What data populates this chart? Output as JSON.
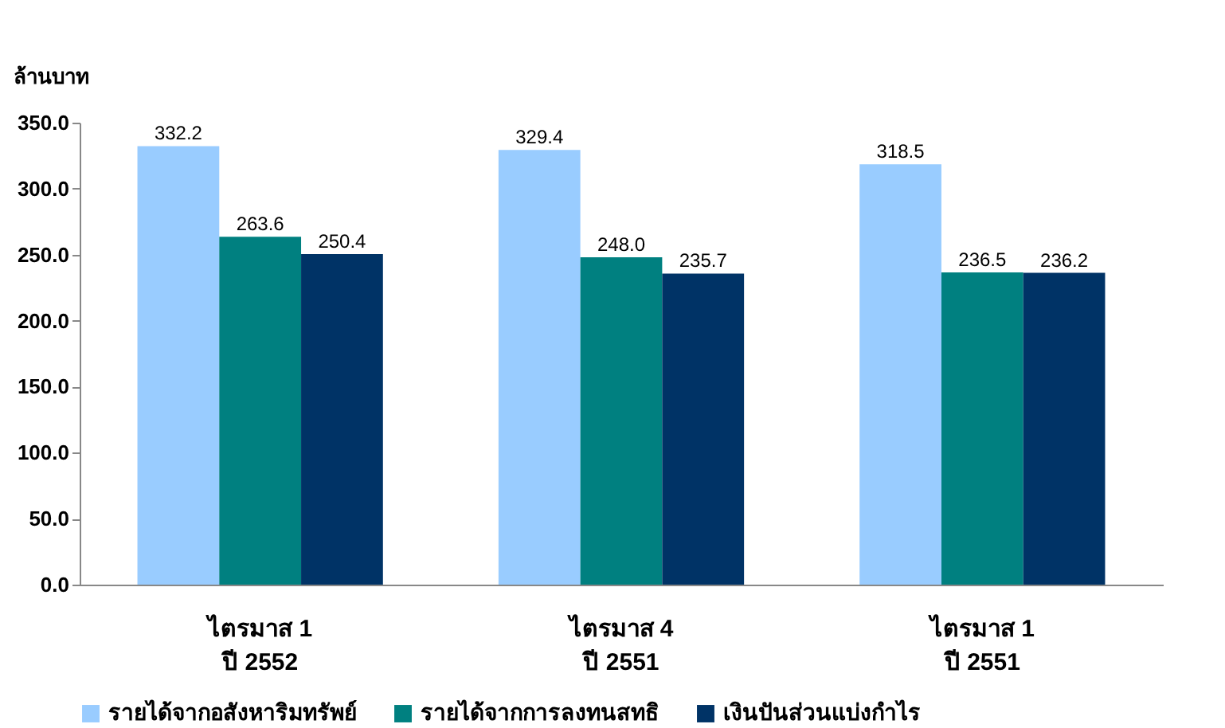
{
  "chart_data": {
    "type": "bar",
    "ylabel": "ล้านบาท",
    "categories": [
      "ไตรมาส 1\nปี 2552",
      "ไตรมาส 4\nปี 2551",
      "ไตรมาส 1\nปี 2551"
    ],
    "series": [
      {
        "name": "รายได้จากอสังหาริมทรัพย์",
        "color": "#99ccff",
        "values": [
          332.2,
          329.4,
          318.5
        ],
        "value_labels": [
          "332.2",
          "329.4",
          "318.5"
        ]
      },
      {
        "name": "รายได้จากการลงทนสทธิ",
        "color": "#008080",
        "values": [
          263.6,
          248.0,
          236.5
        ],
        "value_labels": [
          "263.6",
          "248.0",
          "236.5"
        ]
      },
      {
        "name": "เงินปันส่วนแบ่งกำไร",
        "color": "#003366",
        "values": [
          250.4,
          235.7,
          236.2
        ],
        "value_labels": [
          "250.4",
          "235.7",
          "236.2"
        ]
      }
    ],
    "ylim": [
      0,
      350
    ],
    "yticks": [
      {
        "value": 0,
        "label": "0.0"
      },
      {
        "value": 50,
        "label": "50.0"
      },
      {
        "value": 100,
        "label": "100.0"
      },
      {
        "value": 150,
        "label": "150.0"
      },
      {
        "value": 200,
        "label": "200.0"
      },
      {
        "value": 250,
        "label": "250.0"
      },
      {
        "value": 300,
        "label": "300.0"
      },
      {
        "value": 350,
        "label": "350.0"
      }
    ],
    "grid": false,
    "legend": "bottom"
  }
}
